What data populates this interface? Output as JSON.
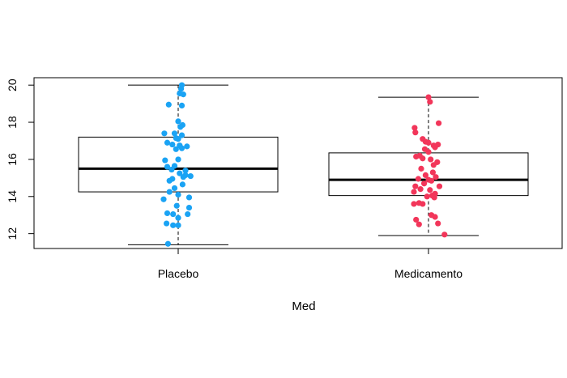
{
  "chart_data": {
    "type": "boxplot",
    "title": "",
    "xlabel": "Med",
    "ylabel": "",
    "ylim": [
      11.2,
      20.4
    ],
    "yticks": [
      12,
      14,
      16,
      18,
      20
    ],
    "categories": [
      "Placebo",
      "Medicamento"
    ],
    "colors": {
      "Placebo": "#1aa3f4",
      "Medicamento": "#f2365a"
    },
    "boxes": [
      {
        "category": "Placebo",
        "whisker_low": 11.4,
        "q1": 14.25,
        "median": 15.5,
        "q3": 17.2,
        "whisker_high": 20.0
      },
      {
        "category": "Medicamento",
        "whisker_low": 11.9,
        "q1": 14.05,
        "median": 14.9,
        "q3": 16.35,
        "whisker_high": 19.35
      }
    ],
    "points": {
      "Placebo": [
        {
          "j": 0.05,
          "y": 20.0
        },
        {
          "j": 0.04,
          "y": 19.8
        },
        {
          "j": 0.02,
          "y": 19.55
        },
        {
          "j": 0.07,
          "y": 19.5
        },
        {
          "j": 0.05,
          "y": 18.9
        },
        {
          "j": -0.13,
          "y": 18.95
        },
        {
          "j": 0.0,
          "y": 18.05
        },
        {
          "j": 0.06,
          "y": 17.85
        },
        {
          "j": 0.03,
          "y": 17.75
        },
        {
          "j": -0.19,
          "y": 17.4
        },
        {
          "j": -0.05,
          "y": 17.4
        },
        {
          "j": 0.05,
          "y": 17.3
        },
        {
          "j": -0.03,
          "y": 17.15
        },
        {
          "j": 0.0,
          "y": 17.1
        },
        {
          "j": -0.15,
          "y": 16.9
        },
        {
          "j": -0.08,
          "y": 16.8
        },
        {
          "j": 0.12,
          "y": 16.7
        },
        {
          "j": 0.02,
          "y": 16.75
        },
        {
          "j": -0.03,
          "y": 16.55
        },
        {
          "j": 0.05,
          "y": 16.6
        },
        {
          "j": -0.18,
          "y": 15.95
        },
        {
          "j": 0.0,
          "y": 16.0
        },
        {
          "j": -0.15,
          "y": 15.6
        },
        {
          "j": -0.05,
          "y": 15.65
        },
        {
          "j": 0.1,
          "y": 15.4
        },
        {
          "j": -0.09,
          "y": 15.45
        },
        {
          "j": 0.02,
          "y": 15.25
        },
        {
          "j": 0.1,
          "y": 15.15
        },
        {
          "j": 0.17,
          "y": 15.1
        },
        {
          "j": 0.07,
          "y": 15.05
        },
        {
          "j": -0.08,
          "y": 14.95
        },
        {
          "j": -0.12,
          "y": 14.85
        },
        {
          "j": 0.06,
          "y": 14.65
        },
        {
          "j": -0.05,
          "y": 14.45
        },
        {
          "j": -0.12,
          "y": 14.25
        },
        {
          "j": 0.0,
          "y": 14.1
        },
        {
          "j": 0.15,
          "y": 13.95
        },
        {
          "j": -0.2,
          "y": 13.85
        },
        {
          "j": -0.02,
          "y": 13.5
        },
        {
          "j": 0.15,
          "y": 13.4
        },
        {
          "j": -0.15,
          "y": 13.1
        },
        {
          "j": -0.07,
          "y": 13.05
        },
        {
          "j": 0.13,
          "y": 13.05
        },
        {
          "j": 0.0,
          "y": 12.85
        },
        {
          "j": -0.16,
          "y": 12.55
        },
        {
          "j": -0.07,
          "y": 12.45
        },
        {
          "j": 0.0,
          "y": 12.45
        },
        {
          "j": -0.14,
          "y": 11.45
        }
      ],
      "Medicamento": [
        {
          "j": 0.0,
          "y": 19.35
        },
        {
          "j": 0.02,
          "y": 19.1
        },
        {
          "j": -0.19,
          "y": 17.7
        },
        {
          "j": -0.18,
          "y": 17.45
        },
        {
          "j": 0.14,
          "y": 17.95
        },
        {
          "j": -0.08,
          "y": 17.1
        },
        {
          "j": -0.04,
          "y": 16.95
        },
        {
          "j": 0.0,
          "y": 16.9
        },
        {
          "j": 0.07,
          "y": 16.75
        },
        {
          "j": 0.09,
          "y": 16.65
        },
        {
          "j": -0.05,
          "y": 16.55
        },
        {
          "j": 0.13,
          "y": 16.8
        },
        {
          "j": 0.0,
          "y": 16.4
        },
        {
          "j": -0.12,
          "y": 16.2
        },
        {
          "j": -0.08,
          "y": 16.05
        },
        {
          "j": 0.03,
          "y": 16.0
        },
        {
          "j": -0.17,
          "y": 16.15
        },
        {
          "j": 0.12,
          "y": 15.85
        },
        {
          "j": 0.07,
          "y": 15.7
        },
        {
          "j": -0.1,
          "y": 15.5
        },
        {
          "j": 0.06,
          "y": 15.3
        },
        {
          "j": -0.04,
          "y": 15.15
        },
        {
          "j": 0.1,
          "y": 15.05
        },
        {
          "j": -0.14,
          "y": 14.95
        },
        {
          "j": 0.0,
          "y": 14.9
        },
        {
          "j": 0.04,
          "y": 14.85
        },
        {
          "j": -0.06,
          "y": 14.7
        },
        {
          "j": -0.18,
          "y": 14.55
        },
        {
          "j": 0.15,
          "y": 14.55
        },
        {
          "j": -0.11,
          "y": 14.4
        },
        {
          "j": 0.02,
          "y": 14.35
        },
        {
          "j": -0.2,
          "y": 14.25
        },
        {
          "j": 0.09,
          "y": 14.15
        },
        {
          "j": 0.05,
          "y": 14.05
        },
        {
          "j": -0.02,
          "y": 14.0
        },
        {
          "j": 0.08,
          "y": 13.95
        },
        {
          "j": -0.13,
          "y": 13.65
        },
        {
          "j": -0.08,
          "y": 13.6
        },
        {
          "j": -0.2,
          "y": 13.6
        },
        {
          "j": 0.04,
          "y": 13.0
        },
        {
          "j": 0.09,
          "y": 12.9
        },
        {
          "j": -0.17,
          "y": 12.75
        },
        {
          "j": -0.13,
          "y": 12.5
        },
        {
          "j": 0.13,
          "y": 12.55
        },
        {
          "j": 0.22,
          "y": 11.95
        }
      ]
    }
  }
}
